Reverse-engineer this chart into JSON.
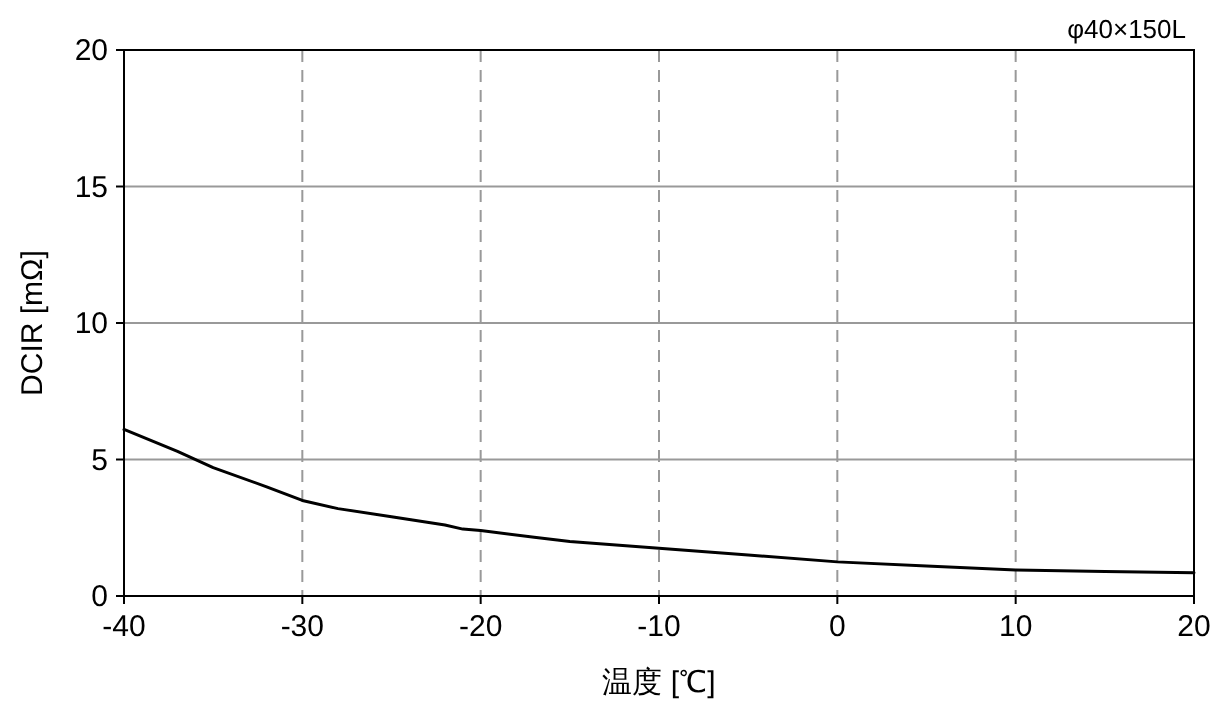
{
  "chart_data": {
    "type": "line",
    "xlabel": "温度 [℃]",
    "ylabel": "DCIR [mΩ]",
    "annotations": [
      "φ40×150L"
    ],
    "x": [
      -40,
      -37,
      -35,
      -32,
      -30,
      -28,
      -25,
      -22,
      -21,
      -20,
      -17,
      -15,
      -10,
      -5,
      0,
      5,
      10,
      15,
      20
    ],
    "series": [
      {
        "color": "#000000",
        "values": [
          6.1,
          5.3,
          4.7,
          4.0,
          3.5,
          3.2,
          2.9,
          2.6,
          2.45,
          2.4,
          2.15,
          2.0,
          1.75,
          1.5,
          1.25,
          1.1,
          0.95,
          0.9,
          0.85
        ]
      }
    ],
    "xlim": [
      -40,
      20
    ],
    "xticks": [
      -40,
      -30,
      -20,
      -10,
      0,
      10,
      20
    ],
    "ylim": [
      0,
      20
    ],
    "yticks": [
      0,
      5,
      10,
      15,
      20
    ],
    "grid": true,
    "line_style": "solid",
    "marker": "none"
  }
}
